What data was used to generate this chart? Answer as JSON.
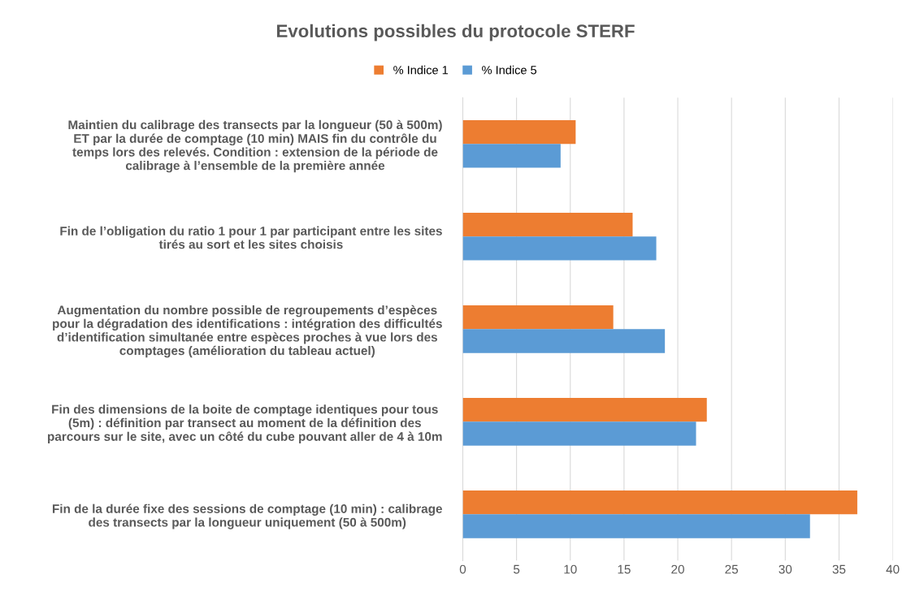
{
  "chart_data": {
    "type": "bar",
    "orientation": "horizontal",
    "title": "Evolutions possibles du protocole STERF",
    "categories": [
      "Maintien du calibrage des transects par la longueur (50 à 500m)\nET par la durée de comptage (10 min) MAIS fin du contrôle du\ntemps lors des relevés. Condition : extension de la période de\ncalibrage à l’ensemble de la première année",
      "Fin de l’obligation du ratio 1 pour 1 par participant entre les sites\ntirés au sort et les sites choisis",
      "Augmentation du nombre possible de regroupements d’espèces\npour la dégradation des identifications : intégration des difficultés\nd’identification simultanée entre espèces proches à vue lors des\ncomptages (amélioration du tableau actuel)",
      "Fin des dimensions de la boite de comptage identiques pour tous\n(5m) : définition par transect au moment de la définition des\nparcours sur le site, avec un côté du cube pouvant aller de 4 à 10m",
      "Fin de la durée fixe des sessions de comptage (10 min) : calibrage\ndes transects par la longueur uniquement (50 à 500m)"
    ],
    "series": [
      {
        "name": "% Indice 1",
        "color": "#ed7d31",
        "values": [
          10.5,
          15.8,
          14.0,
          22.7,
          36.7
        ]
      },
      {
        "name": "% Indice 5",
        "color": "#5b9bd5",
        "values": [
          9.1,
          18.0,
          18.8,
          21.7,
          32.3
        ]
      }
    ],
    "xlim": [
      0,
      40
    ],
    "xticks": [
      0,
      5,
      10,
      15,
      20,
      25,
      30,
      35,
      40
    ],
    "grid": "x",
    "legend": "top"
  }
}
